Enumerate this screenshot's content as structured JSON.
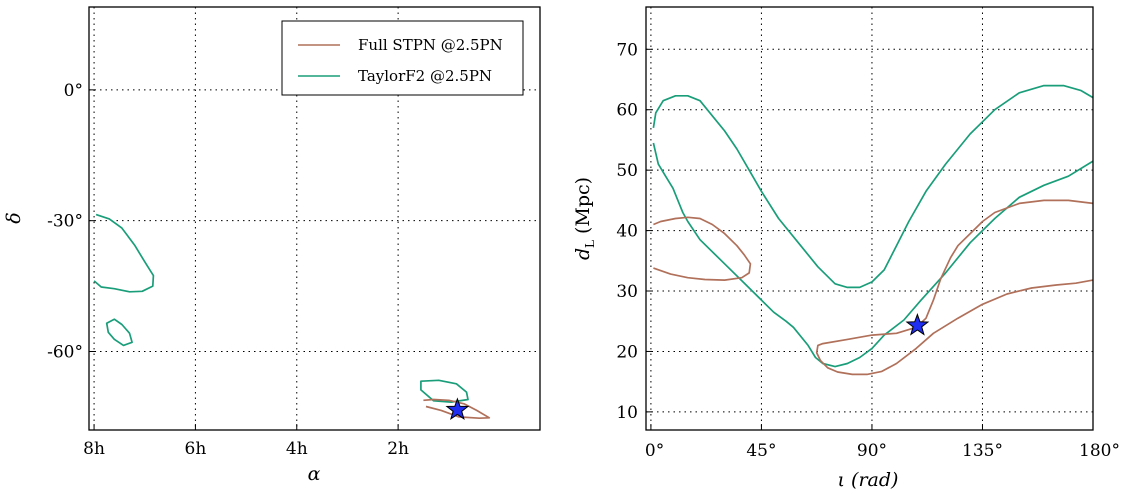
{
  "chart_data": [
    {
      "type": "line",
      "title": "",
      "xlabel": "α",
      "ylabel": "δ",
      "x_ticks": [
        "8h",
        "6h",
        "4h",
        "2h"
      ],
      "y_ticks": [
        "0°",
        "-30°",
        "-60°"
      ],
      "xlim_hours": [
        8.1,
        -0.8
      ],
      "ylim_deg": [
        -78,
        19
      ],
      "grid": true,
      "legend": {
        "placement": "top-right",
        "entries": [
          {
            "label": "Full STPN @2.5PN",
            "color": "#b0705a"
          },
          {
            "label": "TaylorF2 @2.5PN",
            "color": "#1a9e7a"
          }
        ]
      },
      "series": [
        {
          "name": "TaylorF2 @2.5PN",
          "color": "#1a9e7a",
          "closed": false,
          "points": [
            [
              7.96,
              -28.6
            ],
            [
              7.7,
              -29.6
            ],
            [
              7.45,
              -31.7
            ],
            [
              7.2,
              -35.6
            ],
            [
              7.0,
              -39.4
            ],
            [
              6.83,
              -42.6
            ],
            [
              6.84,
              -45.0
            ],
            [
              7.05,
              -46.2
            ],
            [
              7.3,
              -46.3
            ],
            [
              7.6,
              -45.6
            ],
            [
              7.86,
              -45.2
            ],
            [
              8.0,
              -43.8
            ]
          ]
        },
        {
          "name": "TaylorF2 @2.5PN",
          "color": "#1a9e7a",
          "closed": true,
          "points": [
            [
              7.75,
              -53.5
            ],
            [
              7.6,
              -52.6
            ],
            [
              7.45,
              -53.8
            ],
            [
              7.3,
              -55.8
            ],
            [
              7.25,
              -57.9
            ],
            [
              7.42,
              -58.6
            ],
            [
              7.6,
              -57.2
            ],
            [
              7.72,
              -55.6
            ],
            [
              7.75,
              -53.5
            ]
          ]
        },
        {
          "name": "TaylorF2 @2.5PN",
          "color": "#1a9e7a",
          "closed": true,
          "points": [
            [
              1.55,
              -66.8
            ],
            [
              1.2,
              -66.6
            ],
            [
              0.85,
              -67.4
            ],
            [
              0.65,
              -69.3
            ],
            [
              0.62,
              -71.0
            ],
            [
              0.95,
              -71.6
            ],
            [
              1.3,
              -71.3
            ],
            [
              1.55,
              -68.8
            ],
            [
              1.55,
              -66.8
            ]
          ]
        },
        {
          "name": "Full STPN @2.5PN",
          "color": "#b0705a",
          "closed": false,
          "points": [
            [
              1.5,
              -71.2
            ],
            [
              1.3,
              -71.0
            ],
            [
              1.0,
              -71.2
            ],
            [
              0.7,
              -72.0
            ],
            [
              0.45,
              -73.5
            ],
            [
              0.2,
              -75.2
            ],
            [
              0.4,
              -75.3
            ],
            [
              0.8,
              -75.0
            ],
            [
              1.15,
              -73.5
            ],
            [
              1.45,
              -72.6
            ]
          ]
        }
      ],
      "markers": [
        {
          "x": 0.83,
          "y": -73.4,
          "shape": "star",
          "color": "#1f2ef0"
        }
      ]
    },
    {
      "type": "line",
      "title": "",
      "xlabel": "ι (rad)",
      "ylabel": "d_L (Mpc)",
      "x_ticks": [
        "0°",
        "45°",
        "90°",
        "135°",
        "180°"
      ],
      "y_ticks": [
        "10",
        "20",
        "30",
        "40",
        "50",
        "60",
        "70"
      ],
      "xlim_deg": [
        -2,
        180
      ],
      "ylim": [
        7,
        77
      ],
      "grid": true,
      "series": [
        {
          "name": "TaylorF2 @2.5PN",
          "color": "#1a9e7a",
          "closed": false,
          "points": [
            [
              1,
              57
            ],
            [
              2,
              59.5
            ],
            [
              5,
              61.5
            ],
            [
              10,
              62.3
            ],
            [
              15,
              62.3
            ],
            [
              20,
              61.5
            ],
            [
              25,
              59
            ],
            [
              30,
              56.5
            ],
            [
              35,
              53.5
            ],
            [
              40,
              50
            ],
            [
              45,
              46.5
            ],
            [
              52,
              42
            ],
            [
              60,
              38
            ],
            [
              68,
              34
            ],
            [
              75,
              31.2
            ],
            [
              80,
              30.6
            ],
            [
              85,
              30.6
            ],
            [
              90,
              31.5
            ],
            [
              95,
              33.5
            ],
            [
              100,
              37.5
            ],
            [
              105,
              41.5
            ],
            [
              112,
              46.5
            ],
            [
              120,
              51
            ],
            [
              130,
              56
            ],
            [
              140,
              60
            ],
            [
              150,
              62.8
            ],
            [
              160,
              64
            ],
            [
              168,
              64
            ],
            [
              175,
              63.2
            ],
            [
              180,
              62
            ]
          ]
        },
        {
          "name": "TaylorF2 @2.5PN",
          "color": "#1a9e7a",
          "closed": false,
          "points": [
            [
              1,
              54.5
            ],
            [
              3,
              51
            ],
            [
              6,
              49
            ],
            [
              9,
              47
            ],
            [
              11,
              45
            ],
            [
              13,
              43
            ],
            [
              15,
              41.5
            ],
            [
              20,
              38.5
            ],
            [
              30,
              34.5
            ],
            [
              40,
              30.5
            ],
            [
              50,
              26.5
            ],
            [
              55,
              25
            ],
            [
              58,
              24
            ],
            [
              64,
              21
            ],
            [
              67,
              19
            ],
            [
              70,
              18
            ],
            [
              75,
              17.5
            ],
            [
              80,
              18
            ],
            [
              85,
              19
            ],
            [
              90,
              20.5
            ],
            [
              95,
              22.7
            ],
            [
              103,
              25.2
            ],
            [
              110,
              28.5
            ],
            [
              120,
              33
            ],
            [
              130,
              38
            ],
            [
              140,
              42
            ],
            [
              150,
              45.5
            ],
            [
              160,
              47.5
            ],
            [
              170,
              49
            ],
            [
              180,
              51.5
            ]
          ]
        },
        {
          "name": "Full STPN @2.5PN",
          "color": "#b0705a",
          "closed": false,
          "points": [
            [
              1,
              41
            ],
            [
              4,
              41.5
            ],
            [
              10,
              42
            ],
            [
              15,
              42.2
            ],
            [
              20,
              42
            ],
            [
              25,
              41
            ],
            [
              30,
              39.5
            ],
            [
              35,
              37.5
            ],
            [
              38,
              36
            ],
            [
              40.5,
              34.5
            ],
            [
              40,
              33
            ],
            [
              37,
              32.2
            ],
            [
              30,
              31.8
            ],
            [
              22,
              31.9
            ],
            [
              15,
              32.2
            ],
            [
              8,
              32.8
            ],
            [
              1,
              33.8
            ]
          ]
        },
        {
          "name": "Full STPN @2.5PN",
          "color": "#b0705a",
          "closed": false,
          "points": [
            [
              180,
              44.5
            ],
            [
              170,
              45
            ],
            [
              160,
              45
            ],
            [
              150,
              44.5
            ],
            [
              140,
              43
            ],
            [
              135,
              41.5
            ],
            [
              130,
              39.5
            ],
            [
              125,
              37.5
            ],
            [
              122,
              35.5
            ],
            [
              118,
              32
            ],
            [
              115,
              28.5
            ],
            [
              112,
              25.5
            ],
            [
              108,
              24
            ],
            [
              100,
              23
            ],
            [
              90,
              22.7
            ],
            [
              80,
              22
            ],
            [
              70,
              21.3
            ],
            [
              68,
              21
            ],
            [
              67.5,
              19.8
            ],
            [
              69,
              18.5
            ],
            [
              72,
              17.3
            ],
            [
              76,
              16.6
            ],
            [
              82,
              16.2
            ],
            [
              88,
              16.2
            ],
            [
              94,
              16.7
            ],
            [
              100,
              18
            ],
            [
              108,
              20.5
            ],
            [
              115,
              23
            ],
            [
              125,
              25.5
            ],
            [
              135,
              27.8
            ],
            [
              145,
              29.5
            ],
            [
              155,
              30.5
            ],
            [
              165,
              31
            ],
            [
              173,
              31.3
            ],
            [
              180,
              31.8
            ]
          ]
        }
      ],
      "markers": [
        {
          "x": 108.5,
          "y": 24.3,
          "shape": "star",
          "color": "#1f2ef0"
        }
      ]
    }
  ]
}
